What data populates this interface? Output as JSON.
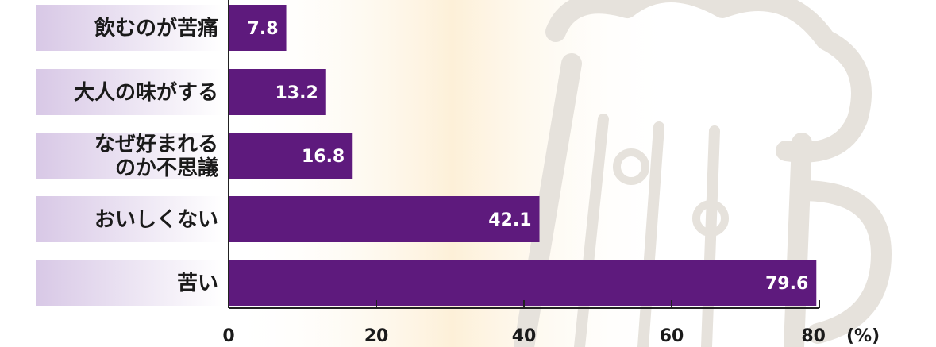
{
  "chart_data": {
    "type": "bar",
    "orientation": "horizontal",
    "categories": [
      [
        "飲むのが苦痛"
      ],
      [
        "大人の味がする"
      ],
      [
        "なぜ好まれる",
        "のか不思議"
      ],
      [
        "おいしくない"
      ],
      [
        "苦い"
      ]
    ],
    "values": [
      7.8,
      13.2,
      16.8,
      42.1,
      79.6
    ],
    "value_labels": [
      "7.8",
      "13.2",
      "16.8",
      "42.1",
      "79.6"
    ],
    "xlim": [
      0,
      80
    ],
    "xticks": [
      0,
      20,
      40,
      60,
      80
    ],
    "xtick_labels": [
      "0",
      "20",
      "40",
      "60",
      "80"
    ],
    "x_unit": "(%)",
    "grid": false,
    "colors": {
      "bar": "#5e1a7d",
      "label_bg_start": "#d8c8e6",
      "label_bg_end": "#ffffff",
      "axis": "#222222",
      "bg_warm": "#fdf0d8",
      "mug_outline": "#e6e2dc"
    }
  }
}
